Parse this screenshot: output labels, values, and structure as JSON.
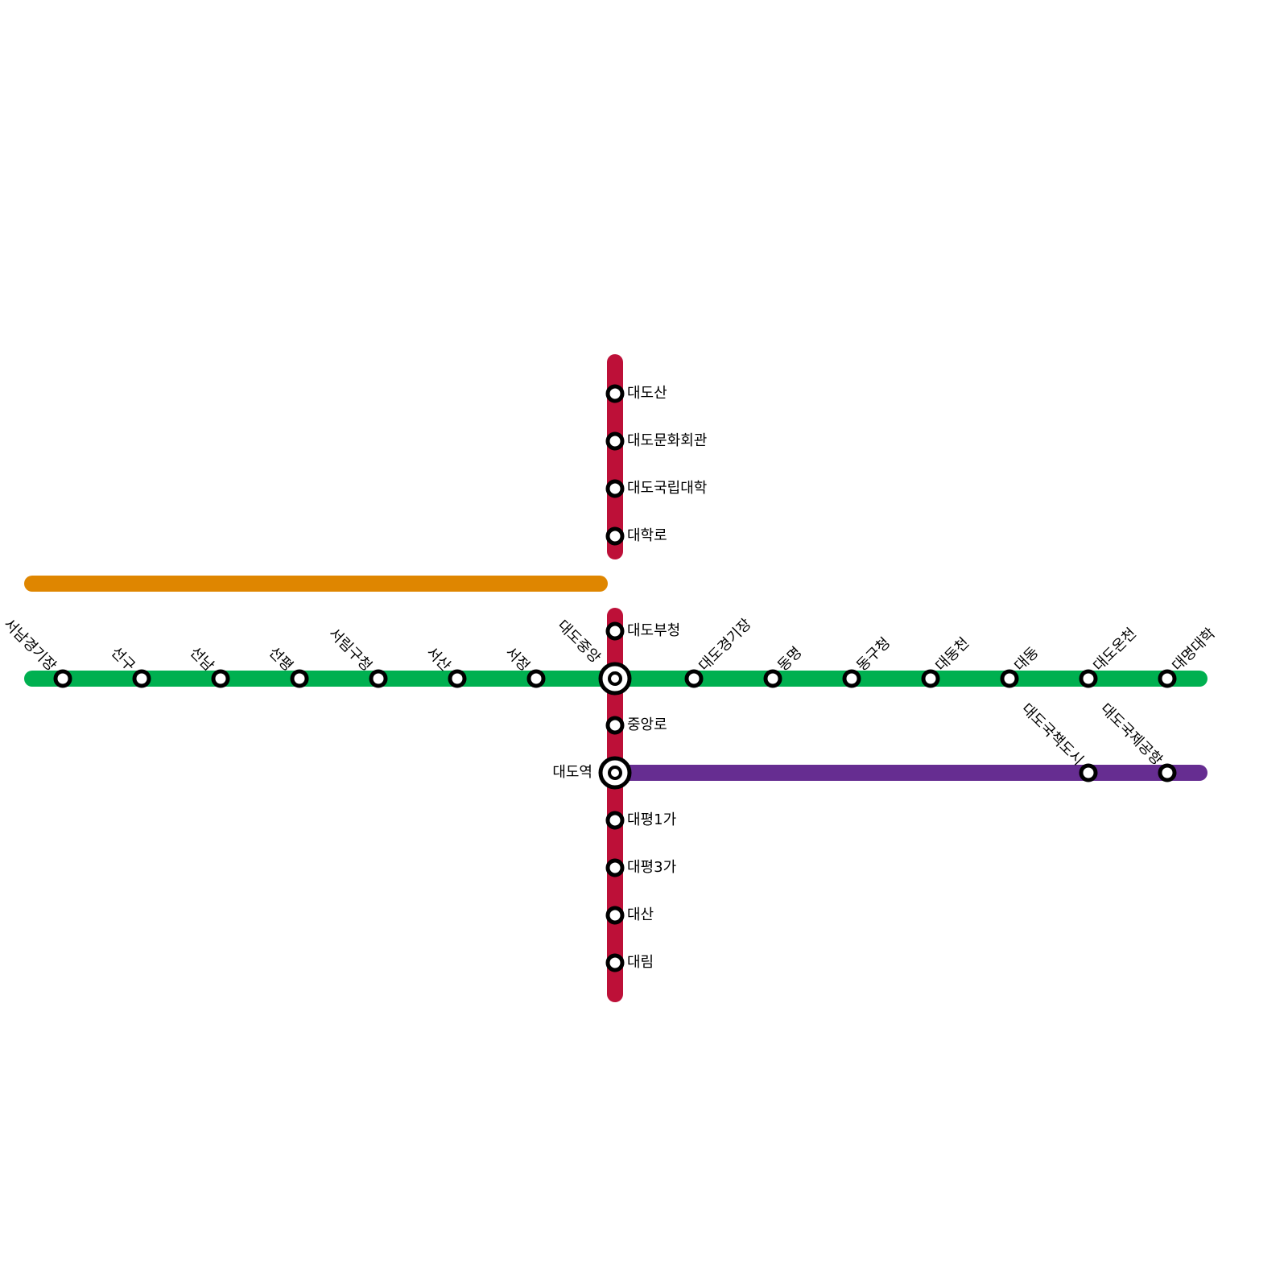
{
  "colors": {
    "green": "#00b050",
    "red": "#bd1038",
    "orange": "#df8600",
    "purple": "#662d91"
  },
  "lines": {
    "orange": {
      "stations": []
    },
    "green": {
      "left": [
        "서남경기장",
        "선구",
        "선남",
        "선평",
        "서림구청",
        "서산",
        "서정"
      ],
      "interchange": "대도중앙",
      "right": [
        "대도경기장",
        "동명",
        "동구청",
        "대동천",
        "대동",
        "대도온천",
        "대명대학"
      ]
    },
    "red": {
      "north": [
        "대도산",
        "대도문화회관",
        "대도국립대학",
        "대학로"
      ],
      "south_upper": [
        "대도부청"
      ],
      "middle": [
        "중앙로"
      ],
      "interchange2": "대도역",
      "south": [
        "대평1가",
        "대평3가",
        "대산",
        "대림"
      ]
    },
    "purple": {
      "stations": [
        "대도국책도시",
        "대도국제공항"
      ]
    }
  }
}
